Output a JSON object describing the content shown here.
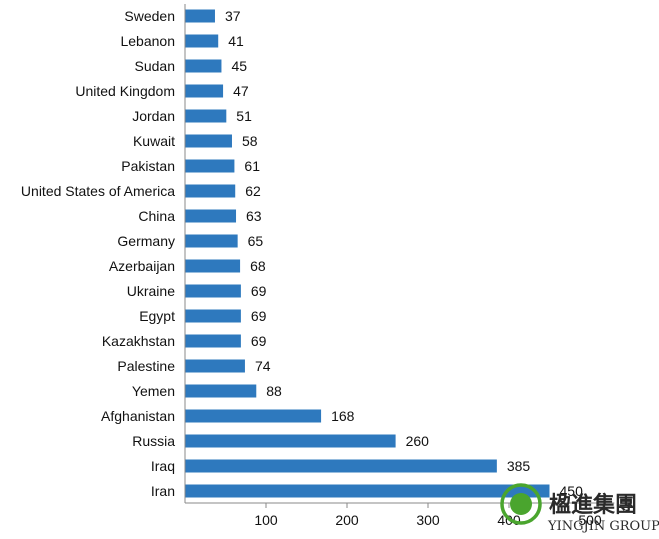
{
  "chart_data": {
    "type": "bar",
    "orientation": "horizontal",
    "categories": [
      "Sweden",
      "Lebanon",
      "Sudan",
      "United Kingdom",
      "Jordan",
      "Kuwait",
      "Pakistan",
      "United States of America",
      "China",
      "Germany",
      "Azerbaijan",
      "Ukraine",
      "Egypt",
      "Kazakhstan",
      "Palestine",
      "Yemen",
      "Afghanistan",
      "Russia",
      "Iraq",
      "Iran"
    ],
    "values": [
      37,
      41,
      45,
      47,
      51,
      58,
      61,
      62,
      63,
      65,
      68,
      69,
      69,
      69,
      74,
      88,
      168,
      260,
      385,
      450
    ],
    "xticks": [
      100,
      200,
      300,
      400,
      500
    ],
    "xlim": [
      0,
      530
    ],
    "bar_color": "#2e79be",
    "grid": false,
    "data_labels": true
  },
  "watermark": {
    "name_cn": "楹進集團",
    "name_en": "YINGJIN GROUP",
    "logo_color": "#4aa52e"
  }
}
